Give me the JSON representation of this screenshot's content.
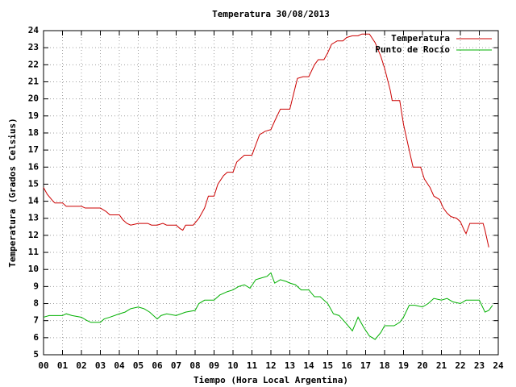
{
  "chart_data": {
    "type": "line",
    "title": "Temperatura 30/08/2013",
    "x_label": "Tiempo (Hora Local Argentina)",
    "y_label": "Temperatura (Grados Celsius)",
    "xlim": [
      0,
      24
    ],
    "ylim": [
      5,
      24
    ],
    "xticks": [
      {
        "value": 0,
        "label": "00"
      },
      {
        "value": 1,
        "label": "01"
      },
      {
        "value": 2,
        "label": "02"
      },
      {
        "value": 3,
        "label": "03"
      },
      {
        "value": 4,
        "label": "04"
      },
      {
        "value": 5,
        "label": "05"
      },
      {
        "value": 6,
        "label": "06"
      },
      {
        "value": 7,
        "label": "07"
      },
      {
        "value": 8,
        "label": "08"
      },
      {
        "value": 9,
        "label": "09"
      },
      10,
      11,
      12,
      13,
      14,
      15,
      16,
      17,
      18,
      19,
      20,
      21,
      22,
      23,
      24
    ],
    "yticks": [
      5,
      6,
      7,
      8,
      9,
      10,
      11,
      12,
      13,
      14,
      15,
      16,
      17,
      18,
      19,
      20,
      21,
      22,
      23,
      24
    ],
    "grid": true,
    "legend": "top-right",
    "series": [
      {
        "name": "Temperatura",
        "color": "#cc0000",
        "x": [
          0,
          0.2,
          0.5,
          0.6,
          1.0,
          1.2,
          2.0,
          2.2,
          3.0,
          3.3,
          3.5,
          4.0,
          4.2,
          4.4,
          4.6,
          5.0,
          5.5,
          5.7,
          6.0,
          6.3,
          6.5,
          7.0,
          7.2,
          7.35,
          7.5,
          7.9,
          8.2,
          8.5,
          8.7,
          9.0,
          9.2,
          9.5,
          9.7,
          10.0,
          10.2,
          10.4,
          10.6,
          11.0,
          11.2,
          11.4,
          11.7,
          12.0,
          12.2,
          12.5,
          13.0,
          13.2,
          13.4,
          13.7,
          14.0,
          14.3,
          14.5,
          14.8,
          15.0,
          15.2,
          15.5,
          15.8,
          16.0,
          16.3,
          16.6,
          16.8,
          17.2,
          17.5,
          17.8,
          18.0,
          18.3,
          18.4,
          18.8,
          19.0,
          19.3,
          19.5,
          19.9,
          20.1,
          20.4,
          20.6,
          20.9,
          21.1,
          21.3,
          21.5,
          21.8,
          22.0,
          22.2,
          22.3,
          22.5,
          23.0,
          23.2,
          23.3,
          23.5
        ],
        "values": [
          14.8,
          14.4,
          14.0,
          13.9,
          13.9,
          13.7,
          13.7,
          13.6,
          13.6,
          13.4,
          13.2,
          13.2,
          12.9,
          12.7,
          12.6,
          12.7,
          12.7,
          12.6,
          12.6,
          12.7,
          12.6,
          12.6,
          12.4,
          12.3,
          12.6,
          12.6,
          13.0,
          13.6,
          14.3,
          14.3,
          15.0,
          15.5,
          15.7,
          15.7,
          16.3,
          16.5,
          16.7,
          16.7,
          17.3,
          17.9,
          18.1,
          18.2,
          18.7,
          19.4,
          19.4,
          20.3,
          21.2,
          21.3,
          21.3,
          22.0,
          22.3,
          22.3,
          22.7,
          23.2,
          23.4,
          23.4,
          23.6,
          23.7,
          23.7,
          23.8,
          23.8,
          23.3,
          22.5,
          21.8,
          20.5,
          19.9,
          19.9,
          18.5,
          17.0,
          16.0,
          16.0,
          15.3,
          14.8,
          14.3,
          14.1,
          13.6,
          13.3,
          13.1,
          13.0,
          12.8,
          12.3,
          12.1,
          12.7,
          12.7,
          12.7,
          12.3,
          11.3
        ]
      },
      {
        "name": "Punto de Rocío",
        "color": "#00b000",
        "x": [
          0,
          0.3,
          1.0,
          1.2,
          1.5,
          2.0,
          2.3,
          2.5,
          3.0,
          3.2,
          3.5,
          4.0,
          4.3,
          4.6,
          5.0,
          5.3,
          5.6,
          6.0,
          6.2,
          6.5,
          7.0,
          7.5,
          8.0,
          8.2,
          8.5,
          9.0,
          9.3,
          9.7,
          10.0,
          10.3,
          10.6,
          10.9,
          11.2,
          11.5,
          11.8,
          12.0,
          12.2,
          12.5,
          12.8,
          13.0,
          13.3,
          13.6,
          14.0,
          14.3,
          14.6,
          15.0,
          15.3,
          15.6,
          16.0,
          16.3,
          16.6,
          16.9,
          17.2,
          17.5,
          17.8,
          18.0,
          18.5,
          18.8,
          19.0,
          19.3,
          19.6,
          20.0,
          20.3,
          20.6,
          21.0,
          21.3,
          21.6,
          22.0,
          22.3,
          22.6,
          23.0,
          23.3,
          23.5,
          23.7
        ],
        "values": [
          7.2,
          7.3,
          7.3,
          7.4,
          7.3,
          7.2,
          7.0,
          6.9,
          6.9,
          7.1,
          7.2,
          7.4,
          7.5,
          7.7,
          7.8,
          7.7,
          7.5,
          7.1,
          7.3,
          7.4,
          7.3,
          7.5,
          7.6,
          8.0,
          8.2,
          8.2,
          8.5,
          8.7,
          8.8,
          9.0,
          9.1,
          8.9,
          9.4,
          9.5,
          9.6,
          9.8,
          9.2,
          9.4,
          9.3,
          9.2,
          9.1,
          8.8,
          8.8,
          8.4,
          8.4,
          8.0,
          7.4,
          7.3,
          6.8,
          6.4,
          7.2,
          6.6,
          6.1,
          5.9,
          6.3,
          6.7,
          6.7,
          6.9,
          7.2,
          7.9,
          7.9,
          7.8,
          8.0,
          8.3,
          8.2,
          8.3,
          8.1,
          8.0,
          8.2,
          8.2,
          8.2,
          7.5,
          7.6,
          7.9
        ]
      }
    ]
  }
}
